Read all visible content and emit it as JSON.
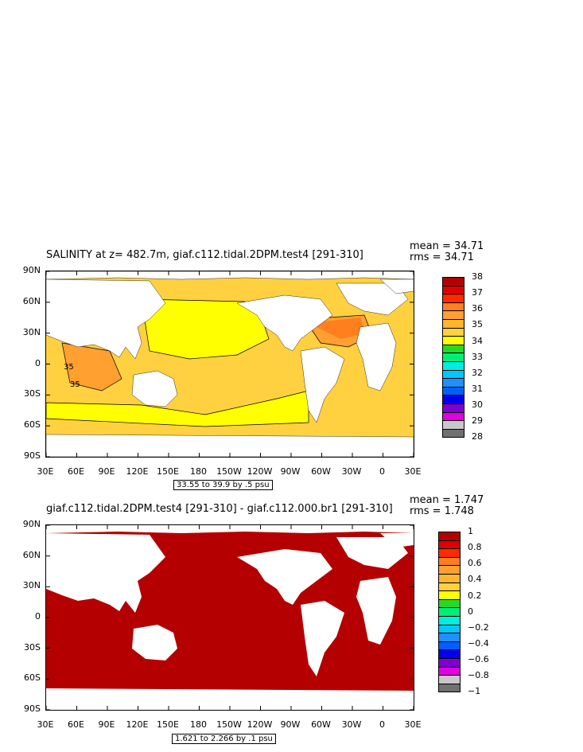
{
  "panels": [
    {
      "title": "SALINITY at z= 482.7m, giaf.c112.tidal.2DPM.test4 [291-310]",
      "stat_mean": "mean = 34.71",
      "stat_rms": "rms = 34.71",
      "range_label": "33.55 to 39.9 by .5 psu",
      "contour_labels": [
        "35",
        "35"
      ],
      "y_labels": [
        "90N",
        "60N",
        "30N",
        "0",
        "30S",
        "60S",
        "90S"
      ],
      "x_labels": [
        "30E",
        "60E",
        "90E",
        "120E",
        "150E",
        "180",
        "150W",
        "120W",
        "90W",
        "60W",
        "30W",
        "0",
        "30E"
      ],
      "colorbar_labels": [
        "38",
        "37",
        "36",
        "35",
        "34",
        "33",
        "32",
        "31",
        "30",
        "29",
        "28"
      ],
      "colorbar_colors": [
        "#b40000",
        "#e00000",
        "#ff2a00",
        "#ff7f1f",
        "#ffa030",
        "#ffb52f",
        "#ffd040",
        "#ffff00",
        "#27d927",
        "#00ee77",
        "#00eedd",
        "#00c8ff",
        "#1e90ff",
        "#0060ff",
        "#0000ee",
        "#8000d0",
        "#e000e0",
        "#c8c8c8",
        "#707070"
      ]
    },
    {
      "title": "giaf.c112.tidal.2DPM.test4 [291-310] - giaf.c112.000.br1 [291-310]",
      "stat_mean": "mean = 1.747",
      "stat_rms": "rms = 1.748",
      "range_label": "1.621 to 2.266 by .1 psu",
      "y_labels": [
        "90N",
        "60N",
        "30N",
        "0",
        "30S",
        "60S",
        "90S"
      ],
      "x_labels": [
        "30E",
        "60E",
        "90E",
        "120E",
        "150E",
        "180",
        "150W",
        "120W",
        "90W",
        "60W",
        "30W",
        "0",
        "30E"
      ],
      "colorbar_labels": [
        "1",
        "0.8",
        "0.6",
        "0.4",
        "0.2",
        "0",
        "−0.2",
        "−0.4",
        "−0.6",
        "−0.8",
        "−1"
      ],
      "colorbar_colors": [
        "#b40000",
        "#e00000",
        "#ff2a00",
        "#ff7f1f",
        "#ffa030",
        "#ffb52f",
        "#ffd040",
        "#ffff00",
        "#27d927",
        "#00ee77",
        "#00eedd",
        "#00c8ff",
        "#1e90ff",
        "#0060ff",
        "#0000ee",
        "#8000d0",
        "#e000e0",
        "#c8c8c8",
        "#707070"
      ]
    }
  ],
  "map_colors": {
    "salinity_35": "#ffd040",
    "salinity_34": "#ffff00",
    "salinity_36": "#ffa030",
    "salinity_365": "#ff7f1f",
    "diff_fill": "#b40000",
    "land": "#ffffff"
  }
}
